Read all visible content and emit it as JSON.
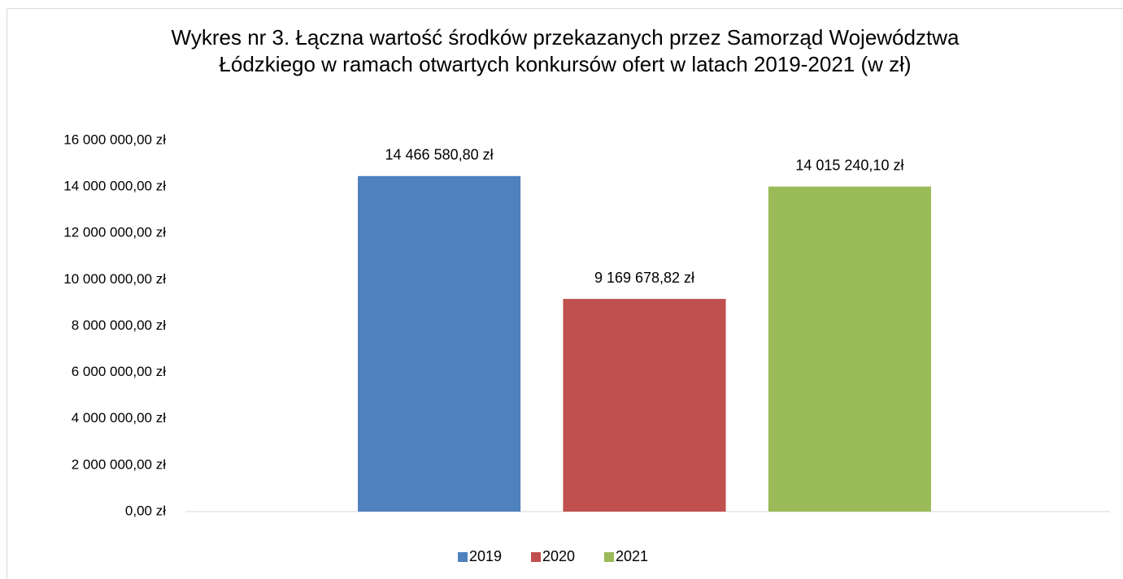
{
  "chart_data": {
    "type": "bar",
    "title": "Wykres nr 3.  Łączna wartość środków przekazanych przez Samorząd Województwa Łódzkiego w ramach otwartych konkursów ofert w latach 2019-2021 (w zł)",
    "categories": [
      null
    ],
    "series": [
      {
        "name": "2019",
        "color": "#4f81bd",
        "values": [
          14466580.8
        ],
        "value_labels": [
          "14 466 580,80 zł"
        ]
      },
      {
        "name": "2020",
        "color": "#c0504d",
        "values": [
          9169678.82
        ],
        "value_labels": [
          "9 169 678,82 zł"
        ]
      },
      {
        "name": "2021",
        "color": "#9bbb59",
        "values": [
          14015240.1
        ],
        "value_labels": [
          "14 015 240,10 zł"
        ]
      }
    ],
    "ylim": [
      0,
      16000000
    ],
    "yticks": [
      {
        "value": 0,
        "label": "0,00 zł"
      },
      {
        "value": 2000000,
        "label": "2 000 000,00 zł"
      },
      {
        "value": 4000000,
        "label": "4 000 000,00 zł"
      },
      {
        "value": 6000000,
        "label": "6 000 000,00 zł"
      },
      {
        "value": 8000000,
        "label": "8 000 000,00 zł"
      },
      {
        "value": 10000000,
        "label": "10 000 000,00 zł"
      },
      {
        "value": 12000000,
        "label": "12 000 000,00 zł"
      },
      {
        "value": 14000000,
        "label": "14 000 000,00 zł"
      },
      {
        "value": 16000000,
        "label": "16 000 000,00 zł"
      }
    ],
    "grid": false,
    "legend": "bottom"
  }
}
